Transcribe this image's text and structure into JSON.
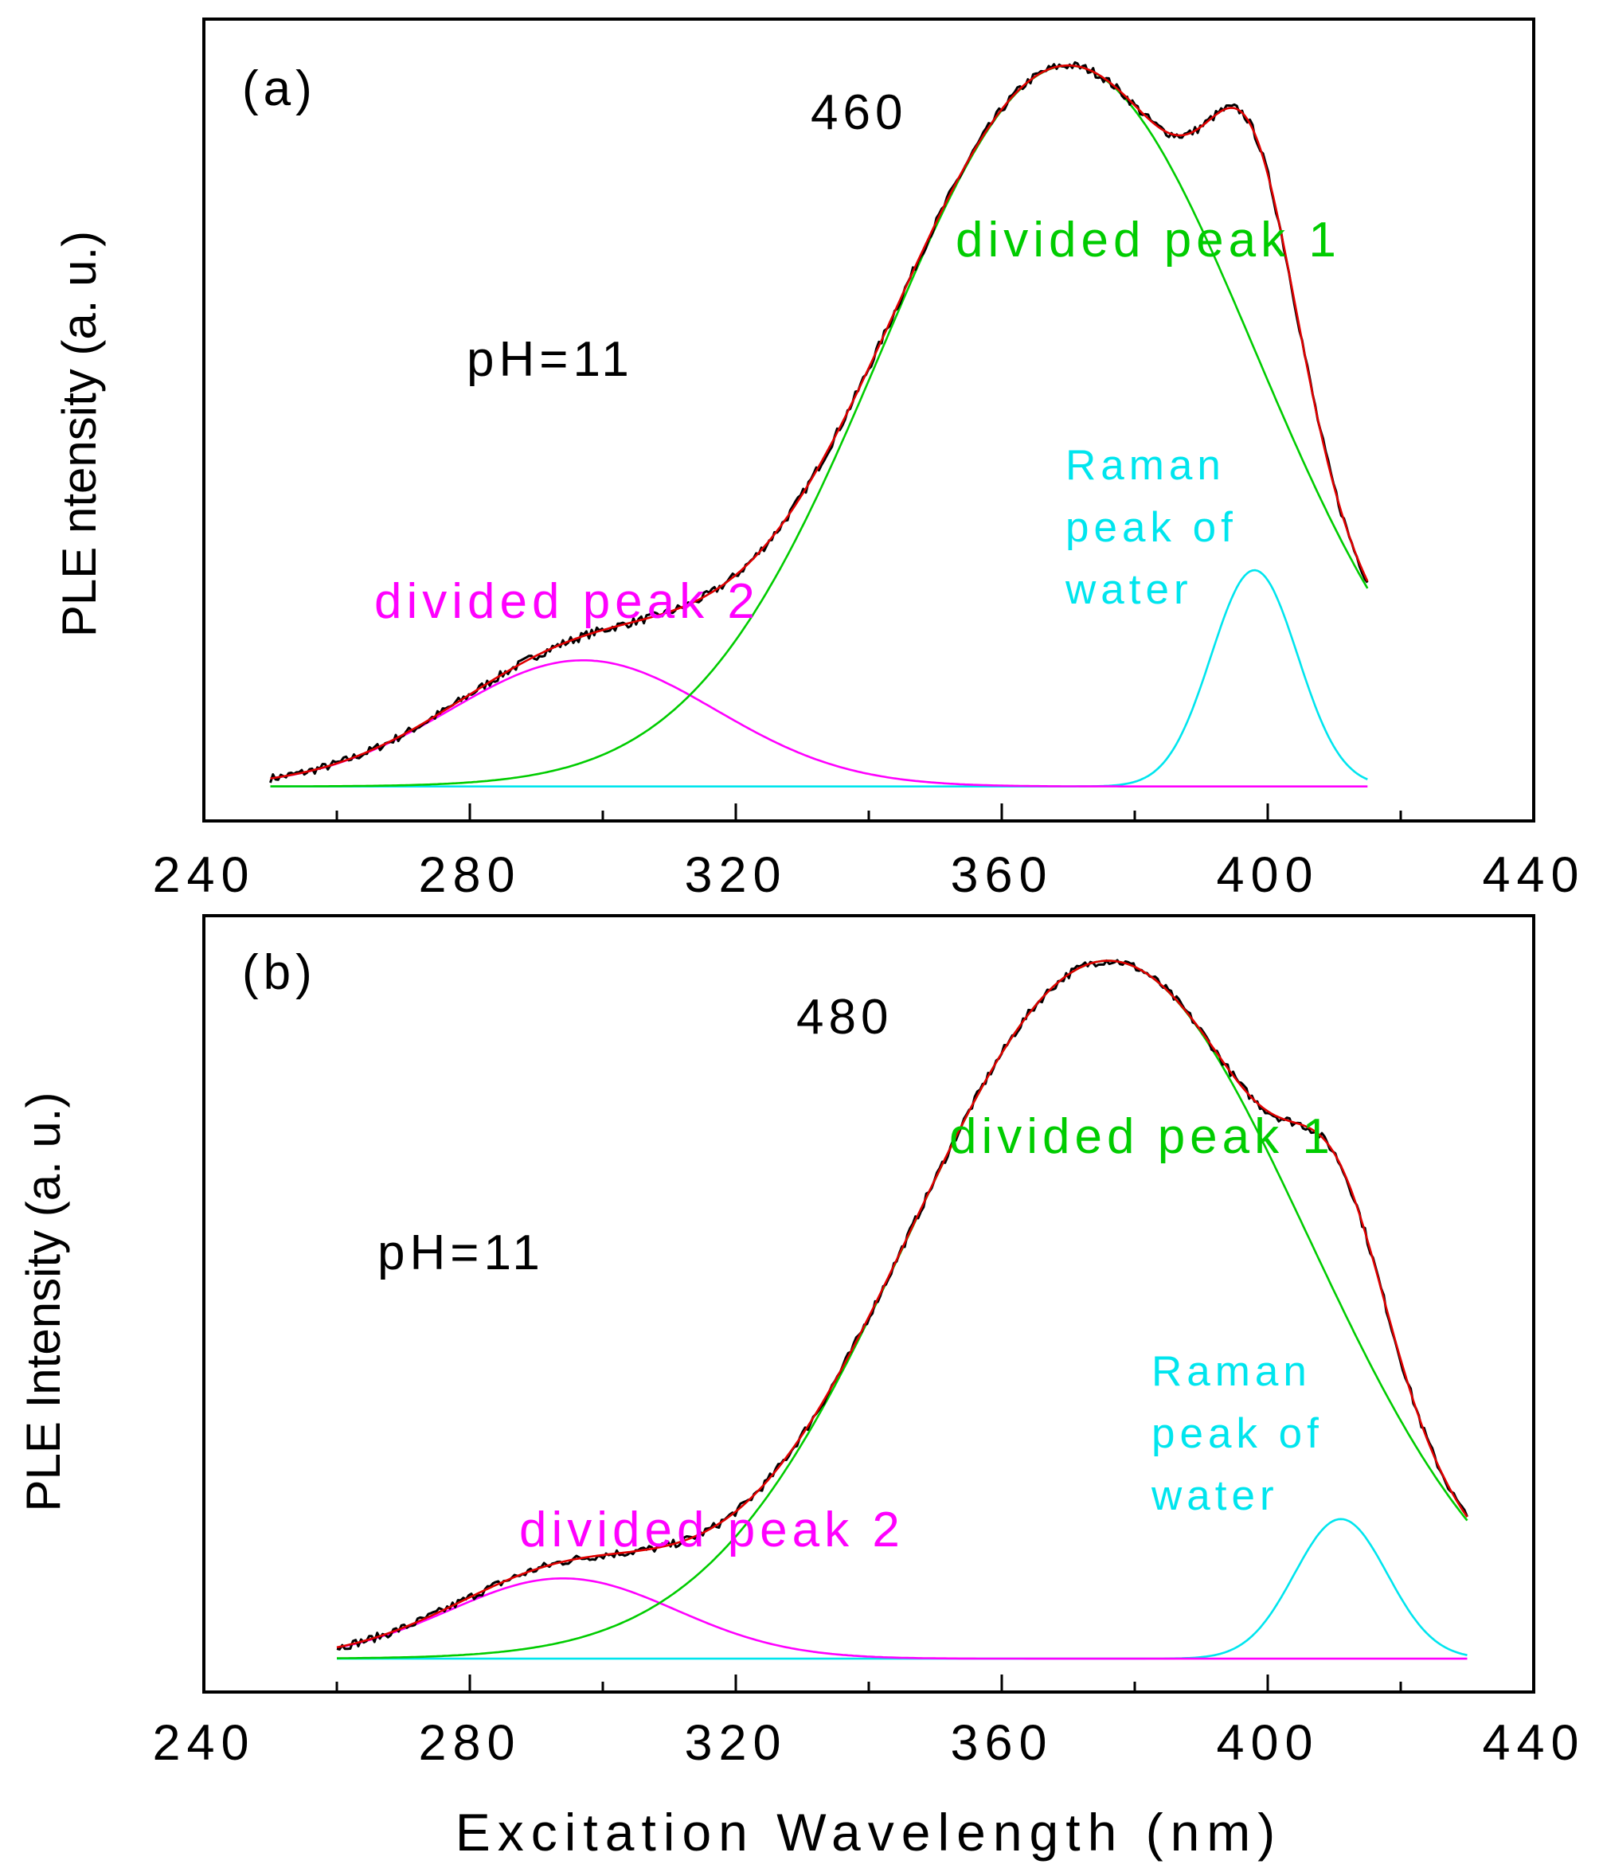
{
  "chart_data": [
    {
      "type": "line",
      "panel_label": "(a)",
      "emission_label": "460",
      "ph_label": "pH=11",
      "ylabel": "PLE ntensity (a. u.)",
      "xlabel": "",
      "xlim": [
        240,
        440
      ],
      "ylim": [
        0,
        1.12
      ],
      "x_ticks": [
        240,
        280,
        320,
        360,
        400,
        440
      ],
      "x_tick_labels": [
        "240",
        "280",
        "320",
        "360",
        "400",
        "440"
      ],
      "yticks_shown": false,
      "x_range": [
        250,
        415
      ],
      "noise": 0.006,
      "series": [
        {
          "name": "measured",
          "color": "#000000",
          "role": "sum",
          "noisy": true
        },
        {
          "name": "fit",
          "color": "#e00000",
          "role": "sum"
        },
        {
          "name": "divided peak 1",
          "color": "#00cc00",
          "role": "g1"
        },
        {
          "name": "divided peak 2",
          "color": "#ff00ff",
          "role": "g2"
        },
        {
          "name": "Raman peak of water",
          "color": "#00e5ee",
          "role": "g3"
        }
      ],
      "gaussians": {
        "g1": {
          "amplitude": 1.0,
          "center": 370,
          "sigma": 28
        },
        "g2": {
          "amplitude": 0.175,
          "center": 297,
          "sigma": 20
        },
        "g3": {
          "amplitude": 0.3,
          "center": 398,
          "sigma": 6.5
        }
      },
      "annotations": [
        {
          "text": "divided peak 1",
          "color": "#00cc00"
        },
        {
          "text": "divided peak 2",
          "color": "#ff00ff"
        },
        {
          "text": "Raman",
          "color": "#00e5ee"
        },
        {
          "text": "peak of",
          "color": "#00e5ee"
        },
        {
          "text": "water",
          "color": "#00e5ee"
        }
      ]
    },
    {
      "type": "line",
      "panel_label": "(b)",
      "emission_label": "480",
      "ph_label": "pH=11",
      "ylabel": "PLE Intensity (a. u.)",
      "xlabel": "Excitation Wavelength (nm)",
      "xlim": [
        240,
        440
      ],
      "ylim": [
        0,
        1.12
      ],
      "x_ticks": [
        240,
        280,
        320,
        360,
        400,
        440
      ],
      "x_tick_labels": [
        "240",
        "280",
        "320",
        "360",
        "400",
        "440"
      ],
      "yticks_shown": false,
      "x_range": [
        260,
        430
      ],
      "noise": 0.006,
      "series": [
        {
          "name": "measured",
          "color": "#000000",
          "role": "sum",
          "noisy": true
        },
        {
          "name": "fit",
          "color": "#e00000",
          "role": "sum"
        },
        {
          "name": "divided peak 1",
          "color": "#00cc00",
          "role": "g1"
        },
        {
          "name": "divided peak 2",
          "color": "#ff00ff",
          "role": "g2"
        },
        {
          "name": "Raman peak of water",
          "color": "#00e5ee",
          "role": "g3"
        }
      ],
      "gaussians": {
        "g1": {
          "amplitude": 1.0,
          "center": 376,
          "sigma": 30
        },
        "g2": {
          "amplitude": 0.115,
          "center": 294,
          "sigma": 17
        },
        "g3": {
          "amplitude": 0.2,
          "center": 411,
          "sigma": 7
        }
      },
      "annotations": [
        {
          "text": "divided peak 1",
          "color": "#00cc00"
        },
        {
          "text": "divided peak 2",
          "color": "#ff00ff"
        },
        {
          "text": "Raman",
          "color": "#00e5ee"
        },
        {
          "text": "peak of",
          "color": "#00e5ee"
        },
        {
          "text": "water",
          "color": "#00e5ee"
        }
      ]
    }
  ]
}
